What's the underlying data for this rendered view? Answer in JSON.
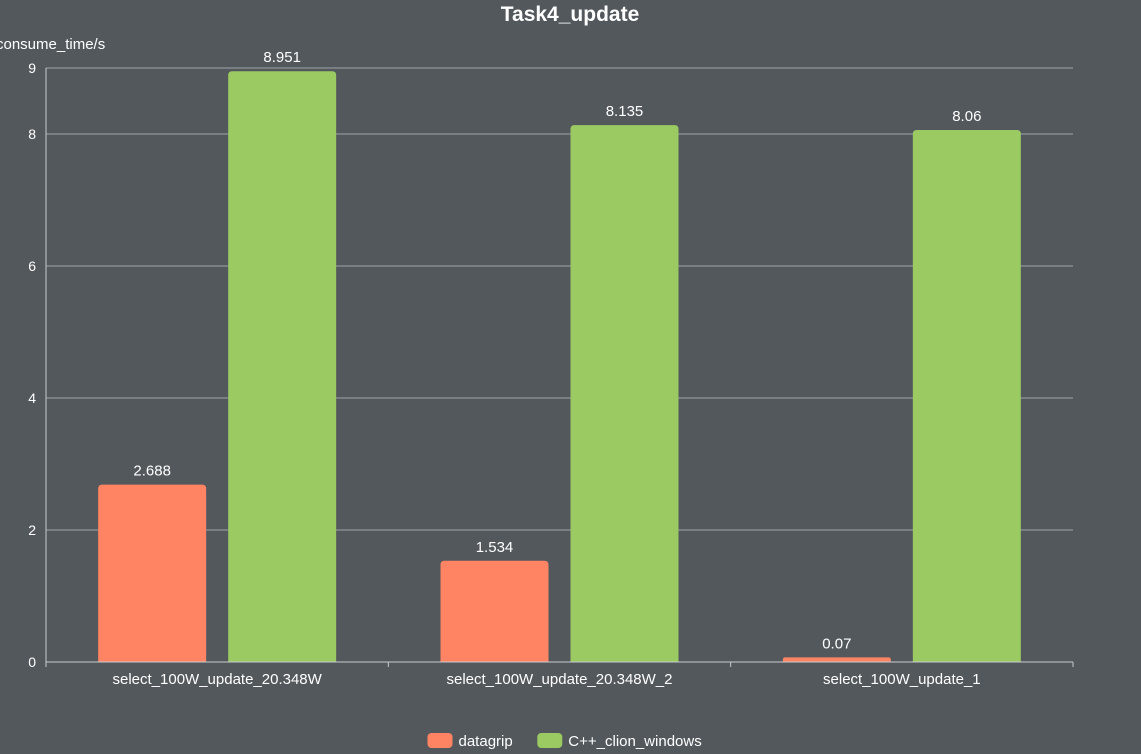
{
  "chart_data": {
    "type": "bar",
    "title": "Task4_update",
    "ylabel": "consume_time/s",
    "xlabel": "",
    "ylim": [
      0,
      9
    ],
    "yticks": [
      0,
      2,
      4,
      6,
      8,
      9
    ],
    "grid": true,
    "legend_position": "bottom",
    "categories": [
      "select_100W_update_20.348W",
      "select_100W_update_20.348W_2",
      "select_100W_update_1"
    ],
    "series": [
      {
        "name": "datagrip",
        "color": "#ff8463",
        "values": [
          2.688,
          1.534,
          0.07
        ],
        "labels": [
          "2.688",
          "1.534",
          "0.07"
        ]
      },
      {
        "name": "C++_clion_windows",
        "color": "#9bca63",
        "values": [
          8.951,
          8.135,
          8.06
        ],
        "labels": [
          "8.951",
          "8.135",
          "8.06"
        ]
      }
    ]
  }
}
